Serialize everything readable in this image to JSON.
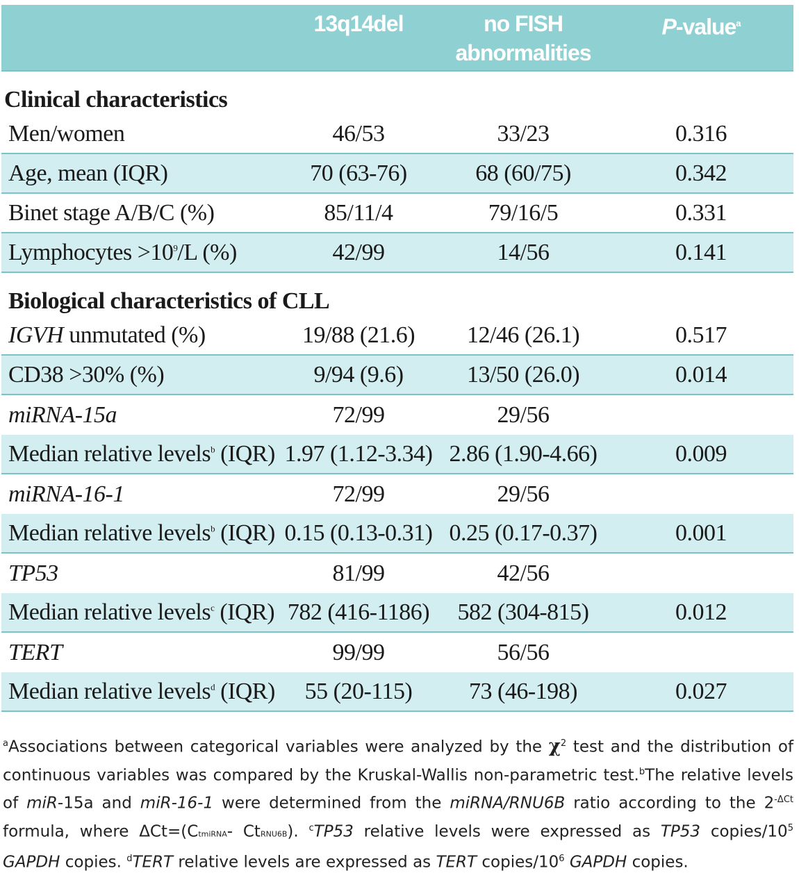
{
  "header": {
    "col1": "13q14del",
    "col2_line1": "no FISH",
    "col2_line2": "abnormalities",
    "col3_p": "P",
    "col3_rest": "-value",
    "col3_sup": "a"
  },
  "sections": {
    "clinical": "Clinical characteristics",
    "biological": "Biological characteristics of CLL"
  },
  "rows": {
    "men": {
      "label": "Men/women",
      "a": "46/53",
      "b": "33/23",
      "p": "0.316"
    },
    "age": {
      "label": "Age, mean (IQR)",
      "a": "70 (63-76)",
      "b": "68 (60/75)",
      "p": "0.342"
    },
    "binet": {
      "label": "Binet stage A/B/C (%)",
      "a": "85/11/4",
      "b": "79/16/5",
      "p": "0.331"
    },
    "lymph": {
      "label_pre": "Lymphocytes >10",
      "label_sup": "9",
      "label_post": "/L (%)",
      "a": "42/99",
      "b": "14/56",
      "p": "0.141"
    },
    "igvh": {
      "label_it": "IGVH",
      "label_rest": " unmutated (%)",
      "a": "19/88 (21.6)",
      "b": "12/46 (26.1)",
      "p": "0.517"
    },
    "cd38": {
      "label": "CD38 >30% (%)",
      "a": "9/94 (9.6)",
      "b": "13/50 (26.0)",
      "p": "0.014"
    },
    "mir15": {
      "label": "miRNA-15a",
      "a": "72/99",
      "b": "29/56",
      "p": ""
    },
    "mir15med": {
      "label_pre": "Median relative levels",
      "label_sup": "b",
      "label_post": " (IQR)",
      "a": "1.97 (1.12-3.34)",
      "b": "2.86 (1.90-4.66)",
      "p": "0.009"
    },
    "mir16": {
      "label": "miRNA-16-1",
      "a": "72/99",
      "b": "29/56",
      "p": ""
    },
    "mir16med": {
      "label_pre": "Median relative levels",
      "label_sup": "b",
      "label_post": " (IQR)",
      "a": "0.15 (0.13-0.31)",
      "b": "0.25 (0.17-0.37)",
      "p": "0.001"
    },
    "tp53": {
      "label": "TP53",
      "a": "81/99",
      "b": "42/56",
      "p": ""
    },
    "tp53med": {
      "label_pre": "Median relative levels",
      "label_sup": "c",
      "label_post": " (IQR)",
      "a": "782 (416-1186)",
      "b": "582 (304-815)",
      "p": "0.012"
    },
    "tert": {
      "label": "TERT",
      "a": "99/99",
      "b": "56/56",
      "p": ""
    },
    "tertmed": {
      "label_pre": "Median  relative levels",
      "label_sup": "d",
      "label_post": " (IQR)",
      "a": "55 (20-115)",
      "b": "73 (46-198)",
      "p": "0.027"
    }
  },
  "footnote": {
    "a_sup": "a",
    "a_text1": "Associations between categorical variables were analyzed by the ",
    "chi": "χ",
    "chi_sup": "2",
    "a_text2": " test and the distribution of continuous variables was compared by the Kruskal-Wallis non-parametric test.",
    "b_sup": "b",
    "b_text1": "The relative levels of ",
    "b_it1": "miR",
    "b_text2": "-15a and ",
    "b_it2": "miR-16-1",
    "b_text3": " were determined from the ",
    "b_it3": "miRNA/RNU6B",
    "b_text4": " ratio according to the  2",
    "b_exp": "-ΔCt",
    "b_text5": "  formula, where ΔCt=(C",
    "b_sub1": "tmiRNA",
    "b_text6": "- Ct",
    "b_sub2": "RNU6B",
    "b_text7": ").",
    "c_sup": "c",
    "c_it1": "TP53",
    "c_text1": " relative levels were expressed as ",
    "c_it2": "TP53",
    "c_text2": " copies/10",
    "c_exp": "5",
    "c_text3": " ",
    "c_it3": "GAPDH",
    "c_text4": " copies.",
    "d_sup": "d",
    "d_it1": "TERT",
    "d_text1": " relative levels are expressed as ",
    "d_it2": "TERT",
    "d_text2": " copies/10",
    "d_exp": "6",
    "d_text3": " ",
    "d_it3": "GAPDH",
    "d_text4": " copies."
  }
}
